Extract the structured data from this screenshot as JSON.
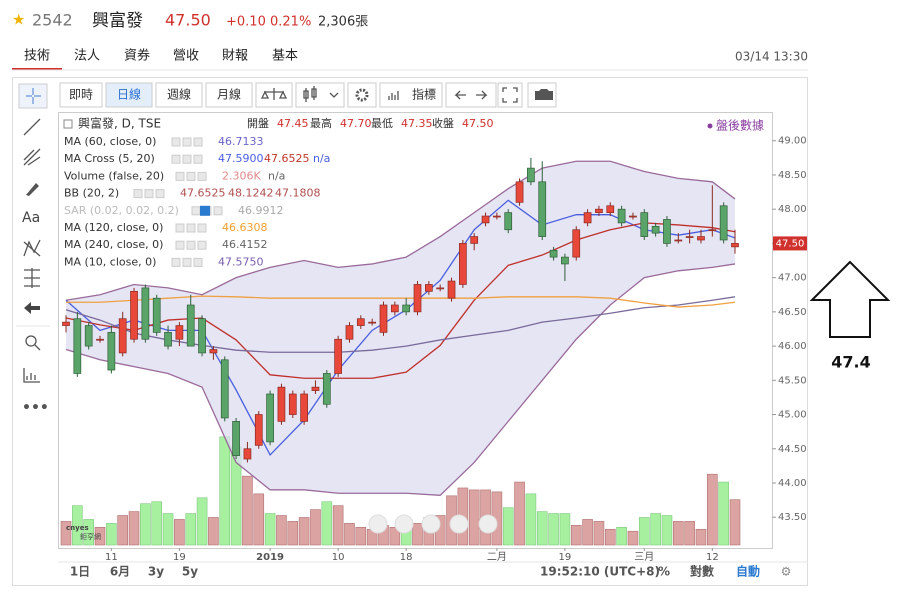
{
  "header": {
    "stock_code": "2542",
    "stock_name": "興富發",
    "price": "47.50",
    "change": "+0.10",
    "change_pct": "0.21%",
    "volume": "2,306張"
  },
  "tabs": [
    "技術",
    "法人",
    "資券",
    "營收",
    "財報",
    "基本"
  ],
  "timestamp": "03/14 13:30",
  "toolbar": {
    "realtime": "即時",
    "daily": "日線",
    "weekly": "週線",
    "monthly": "月線",
    "indicators": "指標"
  },
  "left_tools": {
    "text_tool": "Aa"
  },
  "bottom_bar": {
    "ranges": [
      "1日",
      "6月",
      "3y",
      "5y"
    ],
    "clock": "19:52:10 (UTC+8)",
    "percent": "%",
    "log": "對數",
    "auto": "自動"
  },
  "logo": {
    "brand": "cnyes",
    "name": "鉅亨網"
  },
  "after_hours": "盤後數據",
  "annotation": "47.4",
  "chart_data": {
    "type": "candlestick",
    "symbol": "興富發, D, TSE",
    "ohlc_labels": [
      "開盤",
      "最高",
      "最低",
      "收盤"
    ],
    "ohlc_values": [
      "47.45",
      "47.70",
      "47.35",
      "47.50"
    ],
    "legend": [
      {
        "name": "MA (60, close, 0)",
        "values": [
          {
            "text": "46.7133",
            "color": "#6a64c8"
          }
        ]
      },
      {
        "name": "MA Cross (5, 20)",
        "values": [
          {
            "text": "47.5900",
            "color": "#4a5fe0"
          },
          {
            "text": "47.6525",
            "color": "#c0392b"
          },
          {
            "text": "n/a",
            "color": "#4a5fe0"
          }
        ]
      },
      {
        "name": "Volume (false, 20)",
        "values": [
          {
            "text": "2.306K",
            "color": "#e08a8a"
          },
          {
            "text": "n/a",
            "color": "#666666"
          }
        ]
      },
      {
        "name": "BB (20, 2)",
        "values": [
          {
            "text": "47.6525",
            "color": "#b05050"
          },
          {
            "text": "48.1242",
            "color": "#b05050"
          },
          {
            "text": "47.1808",
            "color": "#b05050"
          }
        ]
      },
      {
        "name": "SAR (0.02, 0.02, 0.2)",
        "values": [
          {
            "text": "46.9912",
            "color": "#aaaaaa"
          }
        ]
      },
      {
        "name": "MA (120, close, 0)",
        "values": [
          {
            "text": "46.6308",
            "color": "#f0a030"
          }
        ]
      },
      {
        "name": "MA (240, close, 0)",
        "values": [
          {
            "text": "46.4152",
            "color": "#666666"
          }
        ]
      },
      {
        "name": "MA (10, close, 0)",
        "values": [
          {
            "text": "47.5750",
            "color": "#7a5fb0"
          }
        ]
      }
    ],
    "ylim": [
      43.05,
      49.42
    ],
    "yticks": [
      {
        "value": 43.5,
        "label": "43.50"
      },
      {
        "value": 44,
        "label": "44.00"
      },
      {
        "value": 44.5,
        "label": "44.50"
      },
      {
        "value": 45,
        "label": "45.00"
      },
      {
        "value": 45.5,
        "label": "45.50"
      },
      {
        "value": 46,
        "label": "46.00"
      },
      {
        "value": 46.5,
        "label": "46.50"
      },
      {
        "value": 47,
        "label": "47.00"
      },
      {
        "value": 47.5,
        "label": "47.50"
      },
      {
        "value": 48,
        "label": "48.00"
      },
      {
        "value": 48.5,
        "label": "48.50"
      },
      {
        "value": 49,
        "label": "49.00"
      }
    ],
    "x_labels": [
      {
        "value": 4,
        "label": "11"
      },
      {
        "value": 10,
        "label": "19"
      },
      {
        "value": 18,
        "label": "2019"
      },
      {
        "value": 24,
        "label": "10"
      },
      {
        "value": 30,
        "label": "18"
      },
      {
        "value": 38,
        "label": "二月"
      },
      {
        "value": 44,
        "label": "19"
      },
      {
        "value": 51,
        "label": "三月"
      },
      {
        "value": 57,
        "label": "12"
      }
    ],
    "up_color": "#e8483a",
    "down_color": "#5aa469",
    "volume_up_color": "#dca3a3",
    "volume_down_color": "#a7f0a0",
    "band_fill": "#dcdcf0",
    "candles": [
      [
        46.3,
        46.45,
        46.2,
        46.35
      ],
      [
        46.4,
        46.5,
        45.55,
        45.6
      ],
      [
        46.3,
        46.35,
        45.95,
        46.0
      ],
      [
        46.1,
        46.15,
        46.05,
        46.1
      ],
      [
        46.2,
        46.3,
        45.6,
        45.65
      ],
      [
        45.9,
        46.5,
        45.85,
        46.4
      ],
      [
        46.1,
        46.85,
        46.05,
        46.8
      ],
      [
        46.85,
        46.9,
        46.05,
        46.1
      ],
      [
        46.7,
        46.75,
        46.15,
        46.2
      ],
      [
        46.2,
        46.3,
        45.95,
        46.0
      ],
      [
        46.1,
        46.35,
        46.0,
        46.3
      ],
      [
        46.6,
        46.75,
        46.0,
        46.0
      ],
      [
        46.4,
        46.45,
        45.85,
        45.9
      ],
      [
        45.9,
        46.0,
        45.8,
        45.95
      ],
      [
        45.8,
        45.85,
        44.9,
        44.95
      ],
      [
        44.9,
        44.95,
        44.35,
        44.4
      ],
      [
        44.35,
        44.6,
        44.3,
        44.5
      ],
      [
        44.55,
        45.05,
        44.5,
        45.0
      ],
      [
        45.3,
        45.35,
        44.55,
        44.6
      ],
      [
        44.9,
        45.45,
        44.85,
        45.4
      ],
      [
        45.0,
        45.35,
        44.95,
        45.3
      ],
      [
        44.9,
        45.35,
        44.85,
        45.3
      ],
      [
        45.35,
        45.5,
        45.3,
        45.4
      ],
      [
        45.6,
        45.65,
        45.1,
        45.15
      ],
      [
        45.6,
        46.15,
        45.55,
        46.1
      ],
      [
        46.1,
        46.35,
        46.05,
        46.3
      ],
      [
        46.3,
        46.45,
        46.25,
        46.4
      ],
      [
        46.35,
        46.4,
        46.3,
        46.35
      ],
      [
        46.2,
        46.65,
        46.15,
        46.6
      ],
      [
        46.5,
        46.65,
        46.45,
        46.6
      ],
      [
        46.6,
        46.7,
        46.45,
        46.5
      ],
      [
        46.5,
        46.95,
        46.45,
        46.9
      ],
      [
        46.8,
        46.95,
        46.75,
        46.9
      ],
      [
        46.85,
        46.9,
        46.8,
        46.85
      ],
      [
        46.7,
        47.0,
        46.65,
        46.95
      ],
      [
        46.9,
        47.55,
        46.85,
        47.5
      ],
      [
        47.5,
        47.65,
        47.4,
        47.6
      ],
      [
        47.8,
        47.95,
        47.75,
        47.9
      ],
      [
        47.9,
        47.95,
        47.85,
        47.9
      ],
      [
        47.95,
        48.0,
        47.65,
        47.7
      ],
      [
        48.1,
        48.45,
        48.05,
        48.4
      ],
      [
        48.6,
        48.75,
        48.35,
        48.4
      ],
      [
        48.4,
        48.7,
        47.55,
        47.6
      ],
      [
        47.4,
        47.45,
        47.25,
        47.3
      ],
      [
        47.3,
        47.35,
        46.95,
        47.2
      ],
      [
        47.3,
        47.75,
        47.25,
        47.7
      ],
      [
        47.8,
        48.0,
        47.75,
        47.95
      ],
      [
        47.95,
        48.05,
        47.9,
        48.0
      ],
      [
        47.95,
        48.1,
        47.9,
        48.05
      ],
      [
        48.0,
        48.05,
        47.75,
        47.8
      ],
      [
        47.9,
        47.95,
        47.85,
        47.9
      ],
      [
        47.95,
        48.0,
        47.55,
        47.6
      ],
      [
        47.75,
        47.8,
        47.6,
        47.65
      ],
      [
        47.85,
        47.9,
        47.45,
        47.5
      ],
      [
        47.55,
        47.65,
        47.5,
        47.55
      ],
      [
        47.6,
        47.7,
        47.5,
        47.6
      ],
      [
        47.55,
        47.7,
        47.5,
        47.6
      ],
      [
        47.7,
        48.35,
        47.6,
        47.7
      ],
      [
        48.05,
        48.1,
        47.5,
        47.55
      ],
      [
        47.45,
        47.7,
        47.35,
        47.5
      ]
    ],
    "vlim": [
      0,
      6000
    ],
    "volumes": [
      1200,
      2000,
      1300,
      900,
      1100,
      1500,
      1700,
      2100,
      2200,
      1600,
      1300,
      1600,
      2400,
      1400,
      5500,
      5000,
      3500,
      2600,
      1600,
      1500,
      1200,
      1400,
      1800,
      2200,
      2000,
      1100,
      900,
      800,
      1000,
      900,
      800,
      1100,
      1400,
      1500,
      2500,
      2900,
      2800,
      2800,
      2700,
      1900,
      3200,
      2600,
      1700,
      1600,
      1600,
      1000,
      1300,
      1200,
      800,
      900,
      700,
      1400,
      1600,
      1500,
      1200,
      1200,
      800,
      3600,
      3200,
      2306
    ],
    "line_x": [
      0,
      3,
      6,
      9,
      12,
      15,
      18,
      21,
      24,
      27,
      30,
      33,
      36,
      39,
      42,
      45,
      48,
      51,
      54,
      57,
      59
    ],
    "band": {
      "upper": [
        46.67,
        46.75,
        46.9,
        46.85,
        46.75,
        47.0,
        47.15,
        47.25,
        47.15,
        47.2,
        47.3,
        47.6,
        47.95,
        48.3,
        48.6,
        48.7,
        48.7,
        48.55,
        48.45,
        48.4,
        48.15
      ],
      "lower": [
        45.95,
        45.8,
        45.7,
        45.6,
        45.4,
        44.3,
        43.9,
        43.9,
        43.85,
        43.85,
        43.85,
        43.82,
        44.3,
        44.9,
        45.5,
        46.1,
        46.6,
        47.0,
        47.1,
        47.15,
        47.2
      ],
      "color": "#9a6a9a"
    },
    "series": [
      {
        "color": "#4a5fe0",
        "values": [
          46.67,
          46.23,
          46.38,
          46.23,
          46.23,
          45.36,
          44.41,
          44.92,
          45.65,
          46.23,
          46.53,
          46.96,
          47.7,
          48.13,
          47.77,
          47.92,
          47.92,
          47.7,
          47.62,
          47.7,
          47.58
        ]
      },
      {
        "color": "#c0302a",
        "values": [
          46.41,
          46.31,
          46.23,
          46.38,
          46.41,
          46.09,
          45.58,
          45.53,
          45.53,
          45.53,
          45.62,
          46.01,
          46.67,
          47.18,
          47.33,
          47.55,
          47.7,
          47.8,
          47.77,
          47.73,
          47.67
        ]
      },
      {
        "color": "#7a6a9a",
        "values": [
          46.53,
          46.38,
          46.19,
          46.09,
          46.01,
          45.94,
          45.91,
          45.91,
          45.91,
          45.94,
          46.0,
          46.09,
          46.16,
          46.23,
          46.35,
          46.41,
          46.48,
          46.56,
          46.6,
          46.67,
          46.72
        ]
      },
      {
        "color": "#f0a040",
        "values": [
          46.64,
          46.64,
          46.67,
          46.7,
          46.73,
          46.72,
          46.7,
          46.7,
          46.7,
          46.7,
          46.7,
          46.7,
          46.7,
          46.72,
          46.72,
          46.72,
          46.7,
          46.63,
          46.57,
          46.6,
          46.64
        ]
      }
    ]
  }
}
